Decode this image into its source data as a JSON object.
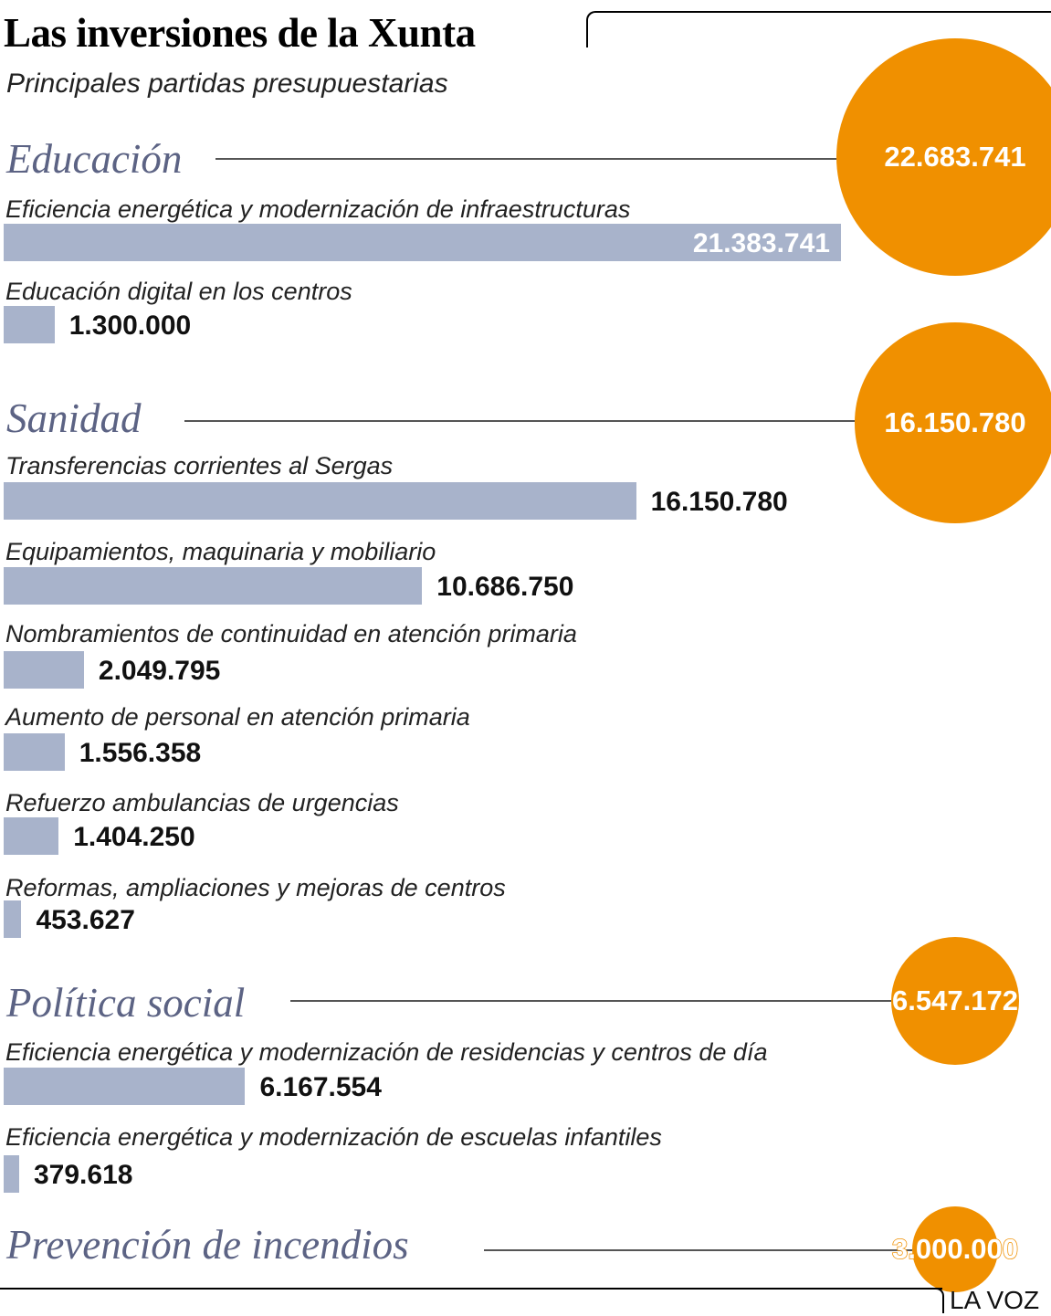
{
  "title": "Las inversiones de la Xunta",
  "subtitle": "Principales partidas presupuestarias",
  "credit": "LA VOZ",
  "colors": {
    "bar": "#a8b3cb",
    "bubble": "#f09000",
    "category": "#5c6384"
  },
  "chart_data": {
    "type": "bar",
    "orientation": "horizontal",
    "groups": [
      {
        "name": "Educación",
        "total": 22683741,
        "total_label": "22.683.741",
        "items": [
          {
            "label": "Eficiencia energética y modernización de infraestructuras",
            "value": 21383741,
            "value_label": "21.383.741"
          },
          {
            "label": "Educación digital en los centros",
            "value": 1300000,
            "value_label": "1.300.000"
          }
        ]
      },
      {
        "name": "Sanidad",
        "total": 16150780,
        "total_label": "16.150.780",
        "items": [
          {
            "label": "Transferencias corrientes al Sergas",
            "value": 16150780,
            "value_label": "16.150.780"
          },
          {
            "label": "Equipamientos, maquinaria y mobiliario",
            "value": 10686750,
            "value_label": "10.686.750"
          },
          {
            "label": "Nombramientos de continuidad en atención primaria",
            "value": 2049795,
            "value_label": "2.049.795"
          },
          {
            "label": "Aumento de personal en atención primaria",
            "value": 1556358,
            "value_label": "1.556.358"
          },
          {
            "label": "Refuerzo ambulancias de urgencias",
            "value": 1404250,
            "value_label": "1.404.250"
          },
          {
            "label": "Reformas, ampliaciones y mejoras de centros",
            "value": 453627,
            "value_label": "453.627"
          }
        ]
      },
      {
        "name": "Política social",
        "total": 6547172,
        "total_label": "6.547.172",
        "items": [
          {
            "label": "Eficiencia energética y modernización de residencias y centros de día",
            "value": 6167554,
            "value_label": "6.167.554"
          },
          {
            "label": "Eficiencia energética y modernización de escuelas infantiles",
            "value": 379618,
            "value_label": "379.618"
          }
        ]
      },
      {
        "name": "Prevención de incendios",
        "total": 3000000,
        "total_label": "3.000.000",
        "items": []
      }
    ]
  }
}
